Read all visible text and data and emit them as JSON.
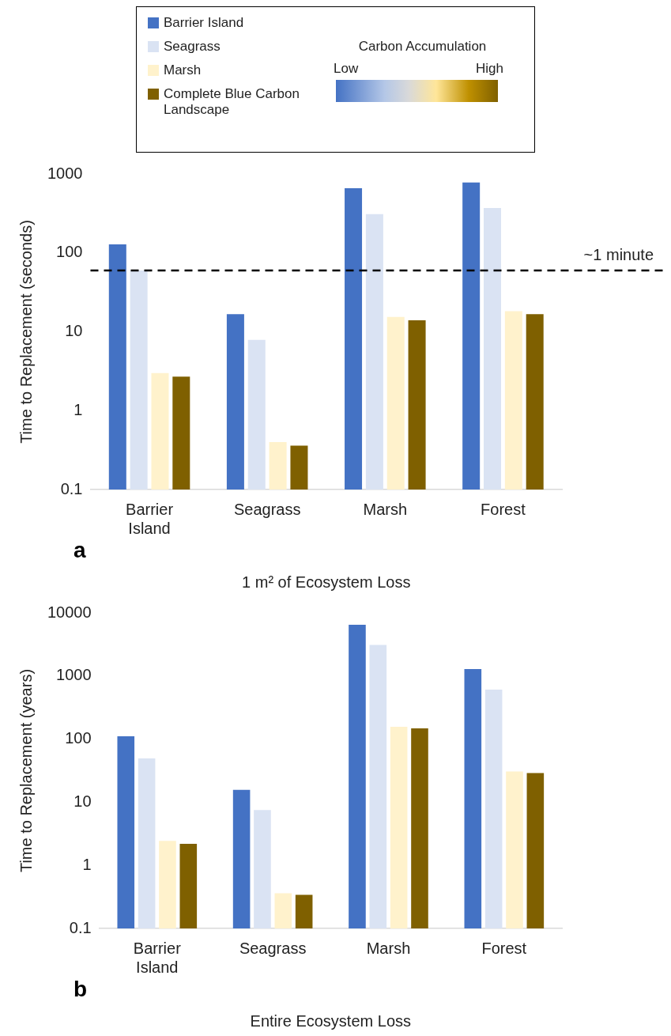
{
  "chart_data": [
    {
      "type": "bar",
      "ylabel": "Time to Replacement (seconds)",
      "xlabel": "1 m² of Ecosystem Loss",
      "categories": [
        "Barrier\nIsland",
        "Seagrass",
        "Marsh",
        "Forest"
      ],
      "series": [
        {
          "name": "Barrier Island",
          "color": "#4472c4",
          "values": [
            128,
            16.7,
            660,
            780
          ]
        },
        {
          "name": "Seagrass",
          "color": "#dae3f3",
          "values": [
            60,
            7.9,
            310,
            370
          ]
        },
        {
          "name": "Marsh",
          "color": "#fff2cc",
          "values": [
            3.0,
            0.4,
            15.4,
            18.2
          ]
        },
        {
          "name": "Complete Blue Carbon Landscape",
          "color": "#7f6000",
          "values": [
            2.7,
            0.36,
            14.0,
            16.7
          ]
        }
      ],
      "log": "y",
      "ylim": [
        0.1,
        1000
      ],
      "yticks": [
        0.1,
        1,
        10,
        100,
        1000
      ],
      "grid": false,
      "legend": "top",
      "ref_lines": [
        {
          "axis": "y",
          "value": 60,
          "label": "~1 minute",
          "color": "#000000",
          "line_style": "dashed"
        }
      ],
      "annotations": [
        "Carbon Accumulation",
        "Low",
        "High",
        "a"
      ]
    },
    {
      "type": "bar",
      "ylabel": "Time to Replacement (years)",
      "xlabel": "Entire Ecosystem Loss",
      "categories": [
        "Barrier\nIsland",
        "Seagrass",
        "Marsh",
        "Forest"
      ],
      "series": [
        {
          "color": "#4472c4",
          "values": [
            111,
            15.7,
            6500,
            1290
          ]
        },
        {
          "color": "#dae3f3",
          "values": [
            49.5,
            7.5,
            3100,
            610
          ]
        },
        {
          "color": "#fff2cc",
          "values": [
            2.45,
            0.36,
            157,
            30.7
          ]
        },
        {
          "color": "#7f6000",
          "values": [
            2.2,
            0.34,
            148,
            28.9
          ]
        }
      ],
      "log": "y",
      "ylim": [
        0.1,
        10000
      ],
      "yticks": [
        0.1,
        1,
        10,
        100,
        1000,
        10000
      ],
      "grid": false,
      "annotations": [
        "b"
      ]
    }
  ]
}
